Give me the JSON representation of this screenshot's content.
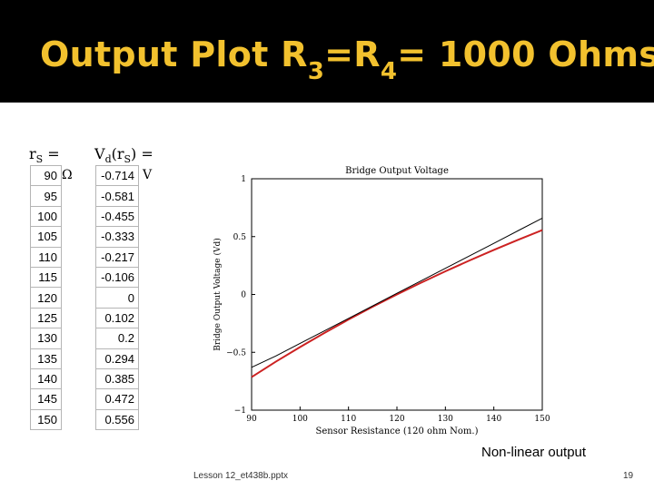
{
  "slide": {
    "title_prefix": "Output Plot R",
    "title_sub1": "3",
    "title_mid": "=R",
    "title_sub2": "4",
    "title_suffix": "= 1000 Ohms",
    "note": "Non-linear output",
    "footer": "Lesson 12_et438b.pptx",
    "page_number": "19",
    "title_color": "#f2c12e"
  },
  "table_r": {
    "header": "r",
    "header_sub": "S",
    "header_eq": "=",
    "unit": "Ω",
    "values": [
      "90",
      "95",
      "100",
      "105",
      "110",
      "115",
      "120",
      "125",
      "130",
      "135",
      "140",
      "145",
      "150"
    ]
  },
  "table_v": {
    "header": "V",
    "header_sub": "d",
    "header_paren_open": "(r",
    "header_paren_sub": "S",
    "header_paren_close": ") =",
    "unit": "V",
    "values": [
      "-0.714",
      "-0.581",
      "-0.455",
      "-0.333",
      "-0.217",
      "-0.106",
      "0",
      "0.102",
      "0.2",
      "0.294",
      "0.385",
      "0.472",
      "0.556"
    ]
  },
  "chart_data": {
    "type": "line",
    "title": "Bridge Output Voltage",
    "xlabel": "Sensor Resistance (120 ohm Nom.)",
    "ylabel": "Bridge Output Voltage (Vd)",
    "xlim": [
      90,
      150
    ],
    "ylim": [
      -1,
      1
    ],
    "xticks": [
      "90",
      "100",
      "110",
      "120",
      "130",
      "140",
      "150"
    ],
    "yticks": [
      "1",
      "0.5",
      "0",
      "-0.5",
      "-1"
    ],
    "x": [
      90,
      95,
      100,
      105,
      110,
      115,
      120,
      125,
      130,
      135,
      140,
      145,
      150
    ],
    "series": [
      {
        "color": "#cc2222",
        "values": [
          -0.714,
          -0.581,
          -0.455,
          -0.333,
          -0.217,
          -0.106,
          0,
          0.102,
          0.2,
          0.294,
          0.385,
          0.472,
          0.556
        ]
      },
      {
        "color": "#000000",
        "values": [
          -0.63,
          -0.532,
          -0.423,
          -0.315,
          -0.207,
          -0.099,
          0.01,
          0.118,
          0.226,
          0.334,
          0.442,
          0.551,
          0.659
        ]
      }
    ],
    "grid": false
  }
}
